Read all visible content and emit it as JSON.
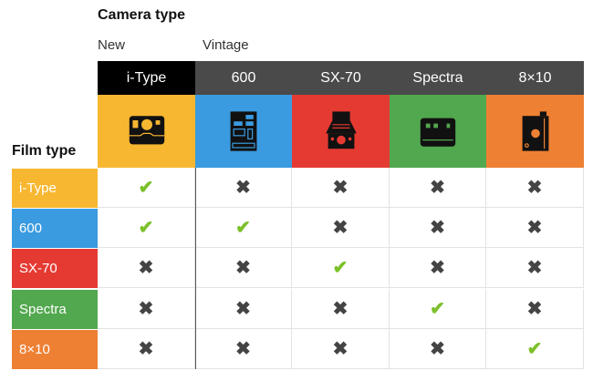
{
  "title": "Camera type",
  "groups": {
    "new": "New",
    "vintage": "Vintage"
  },
  "film_title": "Film type",
  "cameras": [
    {
      "label": "i-Type",
      "color": "#f7b731",
      "header_color": "#000000",
      "icon": "itype-camera-icon"
    },
    {
      "label": "600",
      "color": "#3a9be0",
      "header_color": "#4a4a4a",
      "icon": "600-camera-icon"
    },
    {
      "label": "SX-70",
      "color": "#e43a32",
      "header_color": "#4a4a4a",
      "icon": "sx70-camera-icon"
    },
    {
      "label": "Spectra",
      "color": "#52a84f",
      "header_color": "#4a4a4a",
      "icon": "spectra-camera-icon"
    },
    {
      "label": "8×10",
      "color": "#ee8033",
      "header_color": "#4a4a4a",
      "icon": "8x10-camera-icon"
    }
  ],
  "films": [
    {
      "label": "i-Type",
      "color": "#f7b731",
      "compat": [
        true,
        false,
        false,
        false,
        false
      ]
    },
    {
      "label": "600",
      "color": "#3a9be0",
      "compat": [
        true,
        true,
        false,
        false,
        false
      ]
    },
    {
      "label": "SX-70",
      "color": "#e43a32",
      "compat": [
        false,
        false,
        true,
        false,
        false
      ]
    },
    {
      "label": "Spectra",
      "color": "#52a84f",
      "compat": [
        false,
        false,
        false,
        true,
        false
      ]
    },
    {
      "label": "8×10",
      "color": "#ee8033",
      "compat": [
        false,
        false,
        false,
        false,
        true
      ]
    }
  ],
  "symbols": {
    "yes": "✔",
    "no": "✖"
  }
}
